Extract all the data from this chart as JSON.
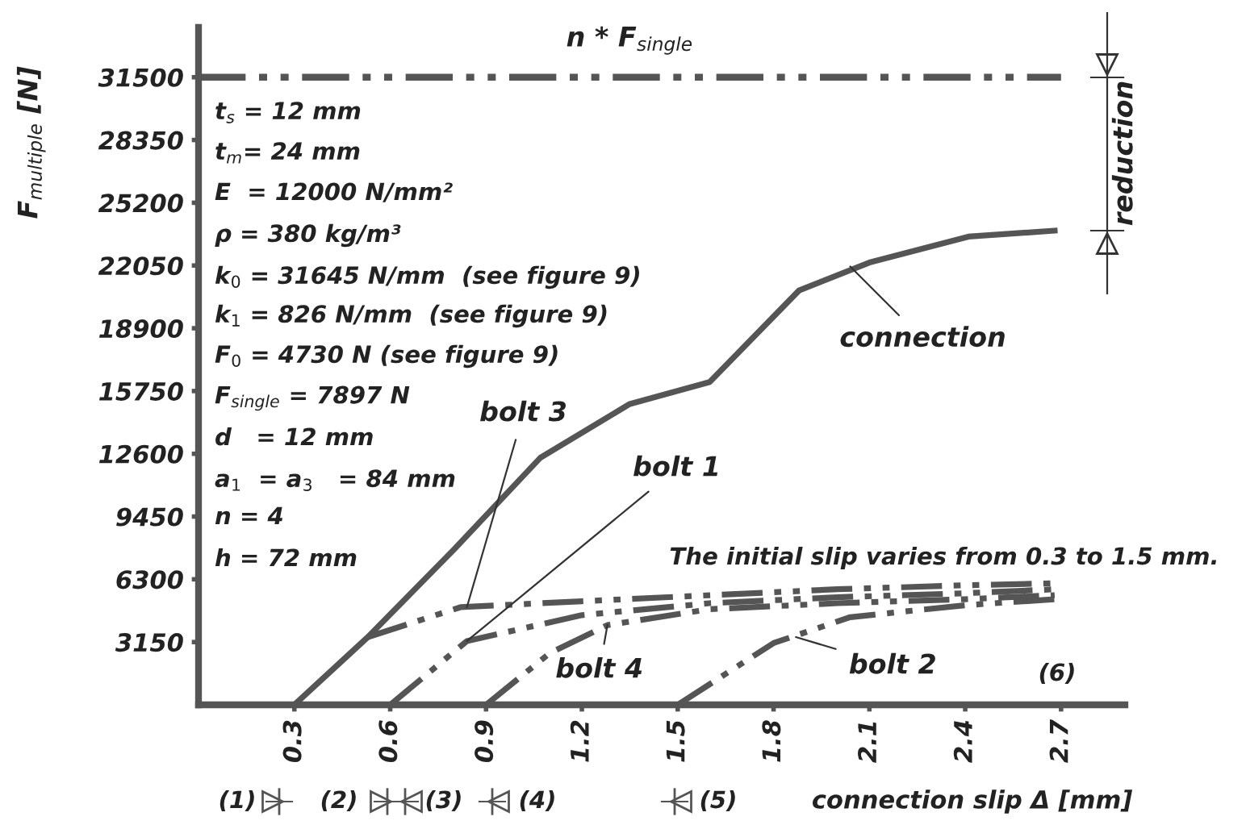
{
  "chart_data": {
    "type": "line",
    "xlabel": "connection slip Δ [mm]",
    "ylabel": "F$_{multiple}$ [N]",
    "xlim": [
      0,
      2.9
    ],
    "xticks": [
      0.3,
      0.6,
      0.9,
      1.2,
      1.5,
      1.8,
      2.1,
      2.4,
      2.7
    ],
    "ylim": [
      0,
      34000
    ],
    "yticks": [
      3150,
      6300,
      9450,
      12600,
      15750,
      18900,
      22050,
      25200,
      28350,
      31500
    ],
    "grid": false,
    "marker": "none",
    "series": [
      {
        "color": "#555555",
        "line_style": "solid",
        "x": [
          0.3,
          0.53,
          0.8,
          1.07,
          1.35,
          1.6,
          1.88,
          2.1,
          2.41,
          2.68
        ],
        "values": [
          0,
          3400,
          7800,
          12400,
          15100,
          16200,
          20800,
          22200,
          23500,
          23800
        ]
      },
      {
        "color": "#555555",
        "line_style": "dashed",
        "x": [
          0.6,
          0.84,
          1.2,
          1.6,
          2.0,
          2.4,
          2.68
        ],
        "values": [
          0,
          3200,
          4500,
          5100,
          5400,
          5600,
          5800
        ]
      },
      {
        "color": "#555555",
        "line_style": "dashed",
        "x": [
          0.53,
          0.82,
          1.2,
          1.6,
          2.0,
          2.4,
          2.68
        ],
        "values": [
          3400,
          4900,
          5200,
          5500,
          5800,
          6000,
          6100
        ]
      },
      {
        "color": "#555555",
        "line_style": "dashed",
        "x": [
          0.9,
          1.1,
          1.28,
          1.6,
          2.0,
          2.4,
          2.68
        ],
        "values": [
          0,
          2600,
          4000,
          4800,
          5100,
          5300,
          5500
        ]
      },
      {
        "color": "#555555",
        "line_style": "dashed",
        "x": [
          1.5,
          1.8,
          2.04,
          2.4,
          2.68
        ],
        "values": [
          0,
          3100,
          4400,
          5000,
          5300
        ]
      }
    ],
    "ref_lines": [
      {
        "axis": "y",
        "value": 31500,
        "label": "n * F$_{single}$",
        "color": "#555555",
        "line_style": "dashed"
      }
    ],
    "annotations": [
      "t$_{s}$ = 12 mm",
      "t$_{m}$= 24 mm",
      "E  = 12000 N/mm²",
      "ρ = 380 kg/m³",
      "k$_{0}$ = 31645 N/mm  (see figure 9)",
      "k$_{1}$ = 826 N/mm  (see figure 9)",
      "F$_{0}$ = 4730 N (see figure 9)",
      "F$_{single}$ = 7897 N",
      "d   = 12 mm",
      "a$_{1}$  = a$_{3}$   = 84 mm",
      "n = 4",
      "h = 72 mm",
      "The initial slip varies from 0.3 to 1.5 mm.",
      "reduction",
      "(6)",
      "(1)",
      "(2)",
      "(3)",
      "(4)",
      "(5)",
      {
        "text": "connection",
        "x": 2.04,
        "y": 22000
      },
      {
        "text": "bolt 1",
        "x": 0.84,
        "y": 3200
      },
      {
        "text": "bolt 3",
        "x": 0.84,
        "y": 4900
      },
      {
        "text": "bolt 4",
        "x": 1.28,
        "y": 4000
      },
      {
        "text": "bolt 2",
        "x": 1.87,
        "y": 3400
      }
    ]
  }
}
